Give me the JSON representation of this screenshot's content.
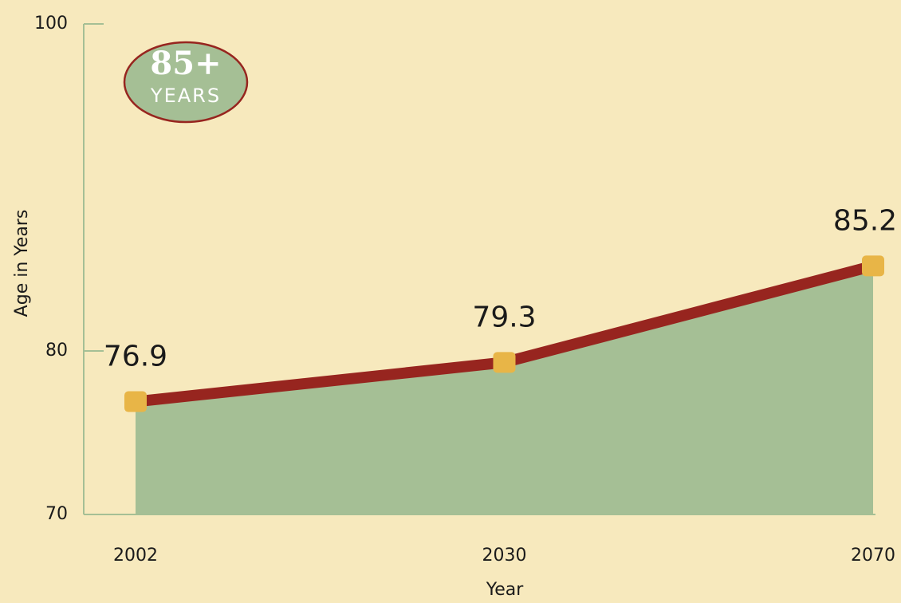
{
  "chart_data": {
    "type": "area",
    "badge": {
      "title": "85+",
      "subtitle": "YEARS"
    },
    "y_label": "Age in Years",
    "x_label": "Year",
    "categories": [
      "2002",
      "2030",
      "2070"
    ],
    "series": [
      {
        "name": "Age",
        "color": "#97251f",
        "fill": "#a5bf95",
        "marker_color": "#e8b547",
        "values": [
          76.9,
          79.3,
          85.2
        ]
      }
    ],
    "ylim": [
      70,
      100
    ],
    "yticks": [
      70,
      80,
      100
    ]
  }
}
